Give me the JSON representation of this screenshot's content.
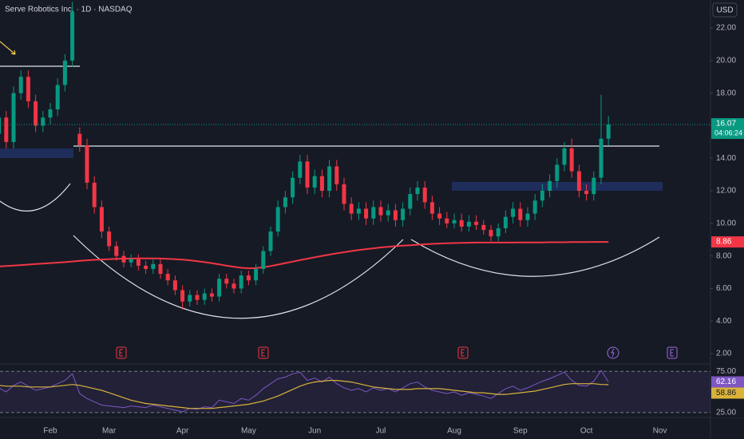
{
  "chart_data": {
    "type": "candlestick",
    "title": "Serve Robotics Inc. · 1D · NASDAQ",
    "currency": "USD",
    "countdown": "04:06:24",
    "categories": [
      null,
      null,
      null,
      null,
      null,
      null,
      null,
      "Feb",
      null,
      null,
      null,
      null,
      null,
      null,
      null,
      "Mar",
      null,
      null,
      null,
      null,
      null,
      null,
      null,
      null,
      null,
      "Apr",
      null,
      null,
      null,
      null,
      null,
      null,
      null,
      null,
      "May",
      null,
      null,
      null,
      null,
      null,
      null,
      null,
      null,
      "Jun",
      null,
      null,
      null,
      null,
      null,
      null,
      null,
      null,
      "Jul",
      null,
      null,
      null,
      null,
      null,
      null,
      null,
      null,
      null,
      "Aug",
      null,
      null,
      null,
      null,
      null,
      null,
      null,
      null,
      "Sep",
      null,
      null,
      null,
      null,
      null,
      null,
      null,
      null,
      "Oct",
      null,
      null,
      null,
      null,
      null,
      null,
      null,
      null,
      null,
      "Nov"
    ],
    "open": [
      15.5,
      16.5,
      15.0,
      18.0,
      19.0,
      17.5,
      16.0,
      16.5,
      17.0,
      18.5,
      20.0,
      15.5,
      14.8,
      12.5,
      11.0,
      9.5,
      8.6,
      8.0,
      7.6,
      7.8,
      7.4,
      7.2,
      7.5,
      6.9,
      6.5,
      5.9,
      5.2,
      5.6,
      5.3,
      5.7,
      5.5,
      6.6,
      6.3,
      6.0,
      6.8,
      6.5,
      7.2,
      8.3,
      9.5,
      11.0,
      11.6,
      12.8,
      13.8,
      12.2,
      12.9,
      12.0,
      13.5,
      12.4,
      11.2,
      10.6,
      10.9,
      10.3,
      11.0,
      10.5,
      10.8,
      10.2,
      10.9,
      11.8,
      12.2,
      11.3,
      10.6,
      10.3,
      10.0,
      10.2,
      9.8,
      10.1,
      9.9,
      9.6,
      9.2,
      9.7,
      10.4,
      10.9,
      10.2,
      10.6,
      11.4,
      12.0,
      12.6,
      13.6,
      14.6,
      13.2,
      12.0,
      11.8,
      12.8,
      15.2,
      null,
      null,
      null,
      null,
      null,
      null,
      null
    ],
    "high": [
      16.9,
      16.9,
      18.4,
      19.4,
      19.4,
      17.9,
      16.9,
      17.4,
      18.9,
      20.4,
      23.6,
      15.9,
      15.2,
      12.9,
      11.4,
      9.8,
      8.9,
      8.3,
      8.1,
      8.1,
      7.7,
      7.8,
      7.8,
      7.2,
      6.8,
      6.2,
      5.9,
      5.9,
      6.0,
      6.0,
      6.9,
      6.9,
      6.6,
      7.1,
      7.1,
      7.5,
      8.6,
      9.8,
      11.4,
      12.0,
      13.2,
      14.2,
      14.2,
      13.3,
      13.3,
      13.9,
      13.9,
      12.8,
      11.6,
      11.3,
      11.3,
      11.4,
      11.4,
      11.2,
      11.2,
      11.3,
      12.2,
      12.6,
      12.6,
      11.7,
      11.0,
      10.7,
      10.6,
      10.6,
      10.5,
      10.5,
      10.2,
      9.9,
      10.0,
      10.8,
      11.3,
      11.3,
      11.0,
      11.8,
      12.4,
      13.0,
      14.0,
      15.0,
      15.2,
      13.6,
      12.4,
      13.2,
      17.9,
      16.6,
      null,
      null,
      null,
      null,
      null,
      null,
      null
    ],
    "low": [
      15.1,
      14.6,
      14.6,
      17.6,
      17.1,
      15.6,
      15.6,
      16.1,
      16.6,
      18.1,
      19.6,
      14.4,
      12.1,
      10.6,
      9.1,
      8.3,
      7.7,
      7.3,
      7.3,
      7.1,
      6.9,
      6.9,
      6.6,
      6.2,
      5.6,
      4.7,
      4.9,
      5.0,
      5.0,
      5.2,
      5.2,
      6.0,
      5.7,
      5.7,
      6.2,
      6.2,
      6.9,
      8.0,
      9.2,
      10.6,
      11.2,
      12.4,
      11.8,
      11.8,
      11.6,
      11.6,
      12.0,
      10.8,
      10.2,
      10.2,
      9.9,
      9.9,
      10.1,
      10.1,
      9.8,
      9.8,
      10.5,
      11.4,
      10.9,
      10.2,
      9.9,
      9.7,
      9.7,
      9.5,
      9.5,
      9.6,
      9.3,
      8.9,
      8.9,
      9.4,
      10.0,
      9.8,
      9.8,
      10.2,
      11.0,
      11.6,
      12.2,
      13.2,
      12.8,
      11.6,
      11.4,
      11.4,
      12.4,
      14.8,
      null,
      null,
      null,
      null,
      null,
      null,
      null
    ],
    "close": [
      16.5,
      15.0,
      18.0,
      19.0,
      17.5,
      16.0,
      16.5,
      17.0,
      18.5,
      20.0,
      23.0,
      14.8,
      12.5,
      11.0,
      9.5,
      8.6,
      8.0,
      7.6,
      7.8,
      7.4,
      7.2,
      7.5,
      6.9,
      6.5,
      5.9,
      5.2,
      5.6,
      5.3,
      5.7,
      5.5,
      6.6,
      6.3,
      6.0,
      6.8,
      6.5,
      7.2,
      8.3,
      9.5,
      11.0,
      11.6,
      12.8,
      13.8,
      12.2,
      12.9,
      12.0,
      13.5,
      12.4,
      11.2,
      10.6,
      10.9,
      10.3,
      11.0,
      10.5,
      10.8,
      10.2,
      10.9,
      11.8,
      12.2,
      11.3,
      10.6,
      10.3,
      10.0,
      10.2,
      9.8,
      10.1,
      9.9,
      9.6,
      9.2,
      9.7,
      10.4,
      10.9,
      10.2,
      10.6,
      11.4,
      12.0,
      12.6,
      13.6,
      14.6,
      13.2,
      12.0,
      11.8,
      12.8,
      15.2,
      16.07,
      null,
      null,
      null,
      null,
      null,
      null,
      null
    ],
    "up_color": "#089981",
    "down_color": "#f23645",
    "ylim": [
      1.56,
      23.72
    ],
    "yticks": [
      {
        "value": 22,
        "label": "22.00"
      },
      {
        "value": 20,
        "label": "20.00"
      },
      {
        "value": 18,
        "label": "18.00"
      },
      {
        "value": 16,
        "label": "16.00"
      },
      {
        "value": 14,
        "label": "14.00"
      },
      {
        "value": 12,
        "label": "12.00"
      },
      {
        "value": 10,
        "label": "10.00"
      },
      {
        "value": 8,
        "label": "8.00"
      },
      {
        "value": 6,
        "label": "6.00"
      },
      {
        "value": 4,
        "label": "4.00"
      },
      {
        "value": 2,
        "label": "2.00"
      }
    ],
    "moving_average": {
      "color": "#f23645",
      "values": [
        7.35,
        7.38,
        7.41,
        7.44,
        7.47,
        7.5,
        7.53,
        7.56,
        7.59,
        7.62,
        7.66,
        7.7,
        7.73,
        7.76,
        7.78,
        7.8,
        7.82,
        7.83,
        7.84,
        7.85,
        7.85,
        7.85,
        7.84,
        7.82,
        7.8,
        7.77,
        7.73,
        7.68,
        7.62,
        7.55,
        7.48,
        7.4,
        7.33,
        7.27,
        7.24,
        7.25,
        7.3,
        7.38,
        7.47,
        7.56,
        7.65,
        7.74,
        7.83,
        7.92,
        8.0,
        8.08,
        8.16,
        8.23,
        8.3,
        8.36,
        8.42,
        8.47,
        8.52,
        8.56,
        8.6,
        8.63,
        8.66,
        8.69,
        8.72,
        8.74,
        8.76,
        8.78,
        8.79,
        8.8,
        8.81,
        8.82,
        8.82,
        8.82,
        8.82,
        8.82,
        8.82,
        8.83,
        8.83,
        8.83,
        8.83,
        8.84,
        8.84,
        8.84,
        8.85,
        8.85,
        8.85,
        8.86,
        8.86,
        8.86,
        null,
        null,
        null,
        null,
        null,
        null,
        null
      ]
    },
    "rsi": {
      "ylim": [
        20,
        82
      ],
      "yticks": [
        {
          "value": 75,
          "label": "75.00"
        },
        {
          "value": 25,
          "label": "25.00"
        }
      ],
      "color": "#7e57c2",
      "values": [
        55,
        50,
        58,
        62,
        57,
        52,
        54,
        56,
        60,
        64,
        72,
        48,
        42,
        38,
        34,
        33,
        32,
        31,
        33,
        32,
        31,
        34,
        32,
        30,
        28,
        26,
        30,
        29,
        32,
        31,
        40,
        38,
        36,
        42,
        40,
        46,
        54,
        60,
        66,
        68,
        72,
        74,
        64,
        67,
        62,
        68,
        60,
        55,
        52,
        54,
        50,
        55,
        52,
        54,
        50,
        55,
        60,
        62,
        56,
        52,
        50,
        48,
        50,
        46,
        49,
        47,
        45,
        42,
        48,
        54,
        57,
        52,
        55,
        59,
        63,
        66,
        70,
        74,
        64,
        58,
        57,
        63,
        76,
        62.16,
        null,
        null,
        null,
        null,
        null,
        null,
        null
      ],
      "ma": {
        "color": "#d9b33a",
        "values": [
          58,
          57,
          57,
          57,
          56,
          56,
          56,
          56,
          57,
          58,
          59,
          58,
          56,
          54,
          52,
          49,
          46,
          43,
          40,
          38,
          36,
          35,
          34,
          33,
          32,
          31,
          30,
          30,
          30,
          30,
          31,
          32,
          33,
          34,
          35,
          37,
          39,
          42,
          45,
          49,
          53,
          57,
          60,
          62,
          63,
          64,
          64,
          63,
          62,
          60,
          58,
          56,
          55,
          54,
          53,
          53,
          53,
          54,
          54,
          54,
          54,
          53,
          52,
          51,
          50,
          49,
          49,
          48,
          47,
          47,
          48,
          49,
          50,
          51,
          53,
          55,
          57,
          59,
          60,
          60,
          60,
          60,
          59,
          58.86,
          null,
          null,
          null,
          null,
          null,
          null,
          null
        ]
      }
    }
  }
}
